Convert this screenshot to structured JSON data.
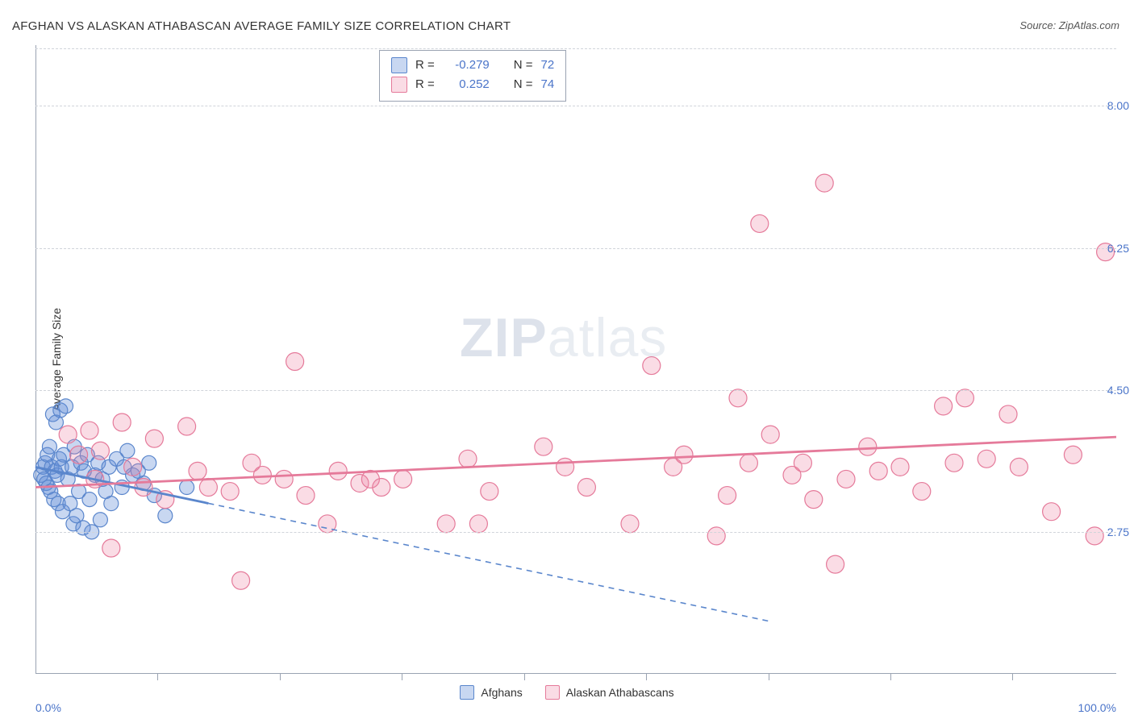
{
  "title": "AFGHAN VS ALASKAN ATHABASCAN AVERAGE FAMILY SIZE CORRELATION CHART",
  "source_label": "Source:",
  "source_value": "ZipAtlas.com",
  "ylabel": "Average Family Size",
  "watermark": {
    "part1": "ZIP",
    "part2": "atlas"
  },
  "chart": {
    "type": "scatter",
    "xlim": [
      0,
      100
    ],
    "ylim": [
      1.0,
      8.75
    ],
    "x_axis_label_left": "0.0%",
    "x_axis_label_right": "100.0%",
    "yticks": [
      2.75,
      4.5,
      6.25,
      8.0
    ],
    "ytick_labels": [
      "2.75",
      "4.50",
      "6.25",
      "8.00"
    ],
    "xtick_positions": [
      11.3,
      22.6,
      33.9,
      45.2,
      56.5,
      67.8,
      79.1,
      90.4
    ],
    "background_color": "#ffffff",
    "grid_color": "#d0d4da",
    "axis_color": "#9aa3b2",
    "tick_label_color": "#4a74c9"
  },
  "series": [
    {
      "name": "Afghans",
      "color_fill": "rgba(96,140,214,0.35)",
      "color_stroke": "#5a86cc",
      "marker_radius": 9,
      "trend": {
        "intercept": 3.55,
        "slope": -0.028,
        "solid_until_x": 16,
        "dashed_to_x": 68
      },
      "points": [
        [
          0.5,
          3.45
        ],
        [
          0.7,
          3.55
        ],
        [
          0.8,
          3.4
        ],
        [
          0.9,
          3.6
        ],
        [
          1.0,
          3.35
        ],
        [
          1.1,
          3.7
        ],
        [
          1.2,
          3.3
        ],
        [
          1.3,
          3.8
        ],
        [
          1.4,
          3.25
        ],
        [
          1.5,
          3.55
        ],
        [
          1.6,
          4.2
        ],
        [
          1.7,
          3.15
        ],
        [
          1.8,
          3.5
        ],
        [
          1.9,
          4.1
        ],
        [
          2.0,
          3.45
        ],
        [
          2.1,
          3.1
        ],
        [
          2.2,
          3.65
        ],
        [
          2.3,
          4.25
        ],
        [
          2.4,
          3.55
        ],
        [
          2.5,
          3.0
        ],
        [
          2.6,
          3.7
        ],
        [
          2.8,
          4.3
        ],
        [
          3.0,
          3.4
        ],
        [
          3.2,
          3.1
        ],
        [
          3.4,
          3.55
        ],
        [
          3.5,
          2.85
        ],
        [
          3.6,
          3.8
        ],
        [
          3.8,
          2.95
        ],
        [
          4.0,
          3.25
        ],
        [
          4.2,
          3.6
        ],
        [
          4.4,
          2.8
        ],
        [
          4.5,
          3.5
        ],
        [
          4.8,
          3.7
        ],
        [
          5.0,
          3.15
        ],
        [
          5.2,
          2.75
        ],
        [
          5.5,
          3.45
        ],
        [
          5.8,
          3.6
        ],
        [
          6.0,
          2.9
        ],
        [
          6.2,
          3.4
        ],
        [
          6.5,
          3.25
        ],
        [
          6.8,
          3.55
        ],
        [
          7.0,
          3.1
        ],
        [
          7.5,
          3.65
        ],
        [
          8.0,
          3.3
        ],
        [
          8.2,
          3.55
        ],
        [
          8.5,
          3.75
        ],
        [
          9.0,
          3.45
        ],
        [
          9.5,
          3.5
        ],
        [
          10.0,
          3.35
        ],
        [
          10.5,
          3.6
        ],
        [
          11.0,
          3.2
        ],
        [
          12.0,
          2.95
        ],
        [
          14.0,
          3.3
        ]
      ]
    },
    {
      "name": "Alaskan Athabascans",
      "color_fill": "rgba(236,130,160,0.28)",
      "color_stroke": "#e57a9a",
      "marker_radius": 11,
      "trend": {
        "intercept": 3.3,
        "slope": 0.0062,
        "solid_until_x": 100,
        "dashed_to_x": 100
      },
      "points": [
        [
          3.0,
          3.95
        ],
        [
          4.0,
          3.7
        ],
        [
          5.0,
          4.0
        ],
        [
          5.5,
          3.4
        ],
        [
          6.0,
          3.75
        ],
        [
          7.0,
          2.55
        ],
        [
          8.0,
          4.1
        ],
        [
          9.0,
          3.55
        ],
        [
          10.0,
          3.3
        ],
        [
          11.0,
          3.9
        ],
        [
          12.0,
          3.15
        ],
        [
          14.0,
          4.05
        ],
        [
          15.0,
          3.5
        ],
        [
          16.0,
          3.3
        ],
        [
          18.0,
          3.25
        ],
        [
          19.0,
          2.15
        ],
        [
          20.0,
          3.6
        ],
        [
          21.0,
          3.45
        ],
        [
          23.0,
          3.4
        ],
        [
          24.0,
          4.85
        ],
        [
          25.0,
          3.2
        ],
        [
          27.0,
          2.85
        ],
        [
          28.0,
          3.5
        ],
        [
          30.0,
          3.35
        ],
        [
          31.0,
          3.4
        ],
        [
          32.0,
          3.3
        ],
        [
          34.0,
          3.4
        ],
        [
          38.0,
          2.85
        ],
        [
          40.0,
          3.65
        ],
        [
          41.0,
          2.85
        ],
        [
          42.0,
          3.25
        ],
        [
          47.0,
          3.8
        ],
        [
          49.0,
          3.55
        ],
        [
          51.0,
          3.3
        ],
        [
          55.0,
          2.85
        ],
        [
          57.0,
          4.8
        ],
        [
          59.0,
          3.55
        ],
        [
          60.0,
          3.7
        ],
        [
          63.0,
          2.7
        ],
        [
          64.0,
          3.2
        ],
        [
          65.0,
          4.4
        ],
        [
          66.0,
          3.6
        ],
        [
          67.0,
          6.55
        ],
        [
          68.0,
          3.95
        ],
        [
          70.0,
          3.45
        ],
        [
          71.0,
          3.6
        ],
        [
          72.0,
          3.15
        ],
        [
          73.0,
          7.05
        ],
        [
          74.0,
          2.35
        ],
        [
          75.0,
          3.4
        ],
        [
          77.0,
          3.8
        ],
        [
          78.0,
          3.5
        ],
        [
          80.0,
          3.55
        ],
        [
          82.0,
          3.25
        ],
        [
          84.0,
          4.3
        ],
        [
          85.0,
          3.6
        ],
        [
          86.0,
          4.4
        ],
        [
          88.0,
          3.65
        ],
        [
          90.0,
          4.2
        ],
        [
          91.0,
          3.55
        ],
        [
          94.0,
          3.0
        ],
        [
          96.0,
          3.7
        ],
        [
          98.0,
          2.7
        ],
        [
          99.0,
          6.2
        ]
      ]
    }
  ],
  "stats_box": {
    "rows": [
      {
        "swatch_fill": "rgba(96,140,214,0.35)",
        "swatch_stroke": "#5a86cc",
        "r_label": "R =",
        "r_value": "-0.279",
        "n_label": "N =",
        "n_value": "72"
      },
      {
        "swatch_fill": "rgba(236,130,160,0.28)",
        "swatch_stroke": "#e57a9a",
        "r_label": "R =",
        "r_value": "0.252",
        "n_label": "N =",
        "n_value": "74"
      }
    ]
  },
  "legend_bottom": [
    {
      "swatch_fill": "rgba(96,140,214,0.35)",
      "swatch_stroke": "#5a86cc",
      "label": "Afghans"
    },
    {
      "swatch_fill": "rgba(236,130,160,0.28)",
      "swatch_stroke": "#e57a9a",
      "label": "Alaskan Athabascans"
    }
  ]
}
